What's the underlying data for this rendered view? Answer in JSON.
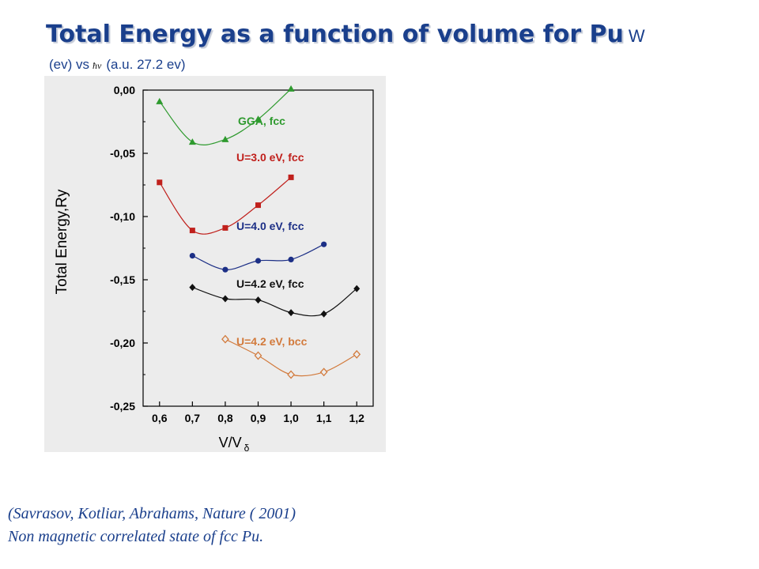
{
  "title": {
    "main": "Total Energy as a function of volume for Pu",
    "suffix": "W",
    "subtitle_left": "(ev) vs",
    "subtitle_symbol": "ħν",
    "subtitle_right": "(a.u. 27.2 ev)"
  },
  "citation": {
    "line1": "(Savrasov, Kotliar, Abrahams,  Nature ( 2001)",
    "line2": "Non magnetic correlated state of fcc Pu."
  },
  "chart_data": {
    "type": "line",
    "xlabel": "V/V",
    "xlabel_sub": "δ",
    "ylabel": "Total Energy,Ry",
    "xlim": [
      0.55,
      1.25
    ],
    "ylim": [
      -0.25,
      0.0
    ],
    "x_ticks": [
      0.6,
      0.7,
      0.8,
      0.9,
      1.0,
      1.1,
      1.2
    ],
    "x_tick_labels": [
      "0,6",
      "0,7",
      "0,8",
      "0,9",
      "1,0",
      "1,1",
      "1,2"
    ],
    "y_ticks": [
      0.0,
      -0.05,
      -0.1,
      -0.15,
      -0.2,
      -0.25
    ],
    "y_tick_labels": [
      "0,00",
      "-0,05",
      "-0,10",
      "-0,15",
      "-0,20",
      "-0,25"
    ],
    "grid": false,
    "series": [
      {
        "name": "GGA, fcc",
        "color": "#2e9a2e",
        "marker": "triangle",
        "x": [
          0.6,
          0.7,
          0.8,
          0.9,
          1.0
        ],
        "y": [
          -0.009,
          -0.041,
          -0.039,
          -0.023,
          0.001
        ]
      },
      {
        "name": "U=3.0 eV, fcc",
        "color": "#c0201c",
        "marker": "square",
        "x": [
          0.6,
          0.7,
          0.8,
          0.9,
          1.0
        ],
        "y": [
          -0.073,
          -0.111,
          -0.109,
          -0.091,
          -0.069
        ]
      },
      {
        "name": "U=4.0 eV, fcc",
        "color": "#1c2f86",
        "marker": "circle",
        "x": [
          0.7,
          0.8,
          0.9,
          1.0,
          1.1
        ],
        "y": [
          -0.131,
          -0.142,
          -0.135,
          -0.134,
          -0.122
        ]
      },
      {
        "name": "U=4.2 eV, fcc",
        "color": "#111111",
        "marker": "diamond",
        "x": [
          0.7,
          0.8,
          0.9,
          1.0,
          1.1,
          1.2
        ],
        "y": [
          -0.156,
          -0.165,
          -0.166,
          -0.176,
          -0.177,
          -0.157
        ]
      },
      {
        "name": "U=4.2 eV, bcc",
        "color": "#d27a3c",
        "marker": "diamond-open",
        "x": [
          0.8,
          0.9,
          1.0,
          1.1,
          1.2
        ],
        "y": [
          -0.197,
          -0.21,
          -0.225,
          -0.223,
          -0.209
        ]
      }
    ]
  }
}
